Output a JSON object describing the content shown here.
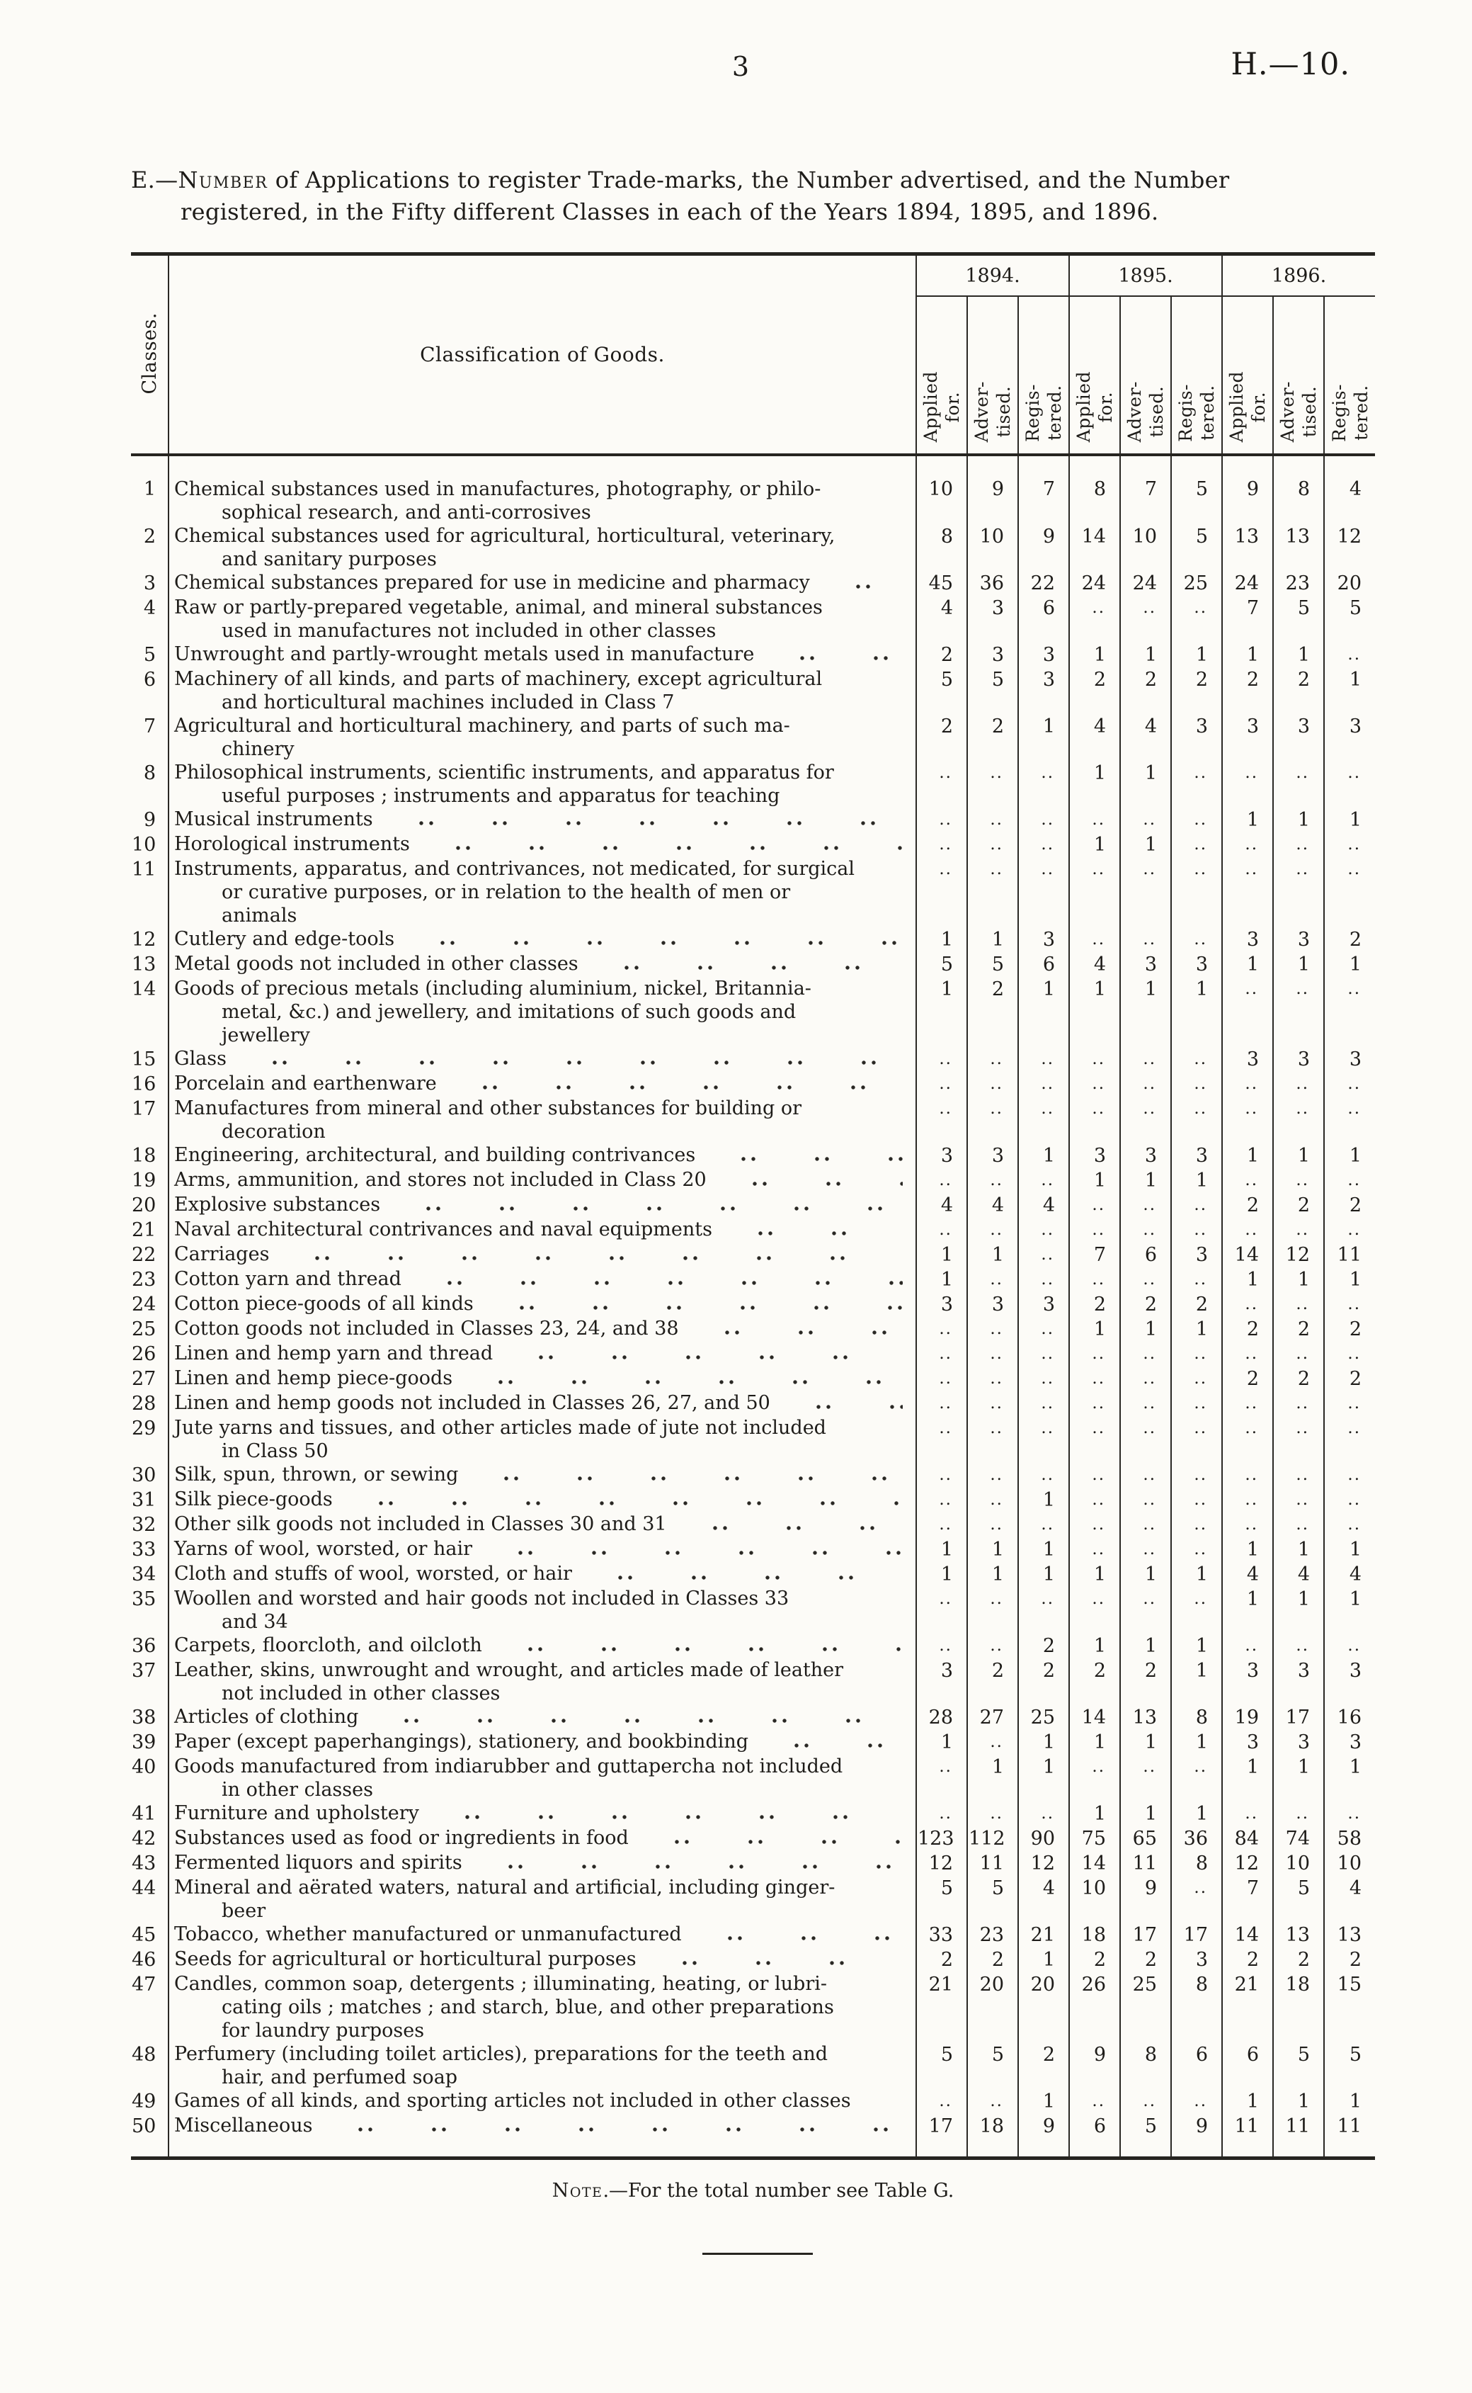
{
  "page": {
    "number": "3",
    "doc_ref": "H.—10.",
    "title_prefix": "E.—",
    "title_sc": "Number",
    "title_rest": " of Applications to register Trade-marks, the Number advertised, and the Number\nregistered, in the Fifty different Classes in each of the Years 1894, 1895, and 1896.",
    "note_sc": "Note",
    "note_rest": ".—For the total number see Table G."
  },
  "table": {
    "col_classes": "Classes.",
    "col_goods": "Classification of Goods.",
    "years": [
      "1894.",
      "1895.",
      "1896."
    ],
    "subcols": [
      "Applied\nfor.",
      "Adver-\ntised.",
      "Regis-\ntered."
    ],
    "empty_marker": "..",
    "rows": [
      {
        "class": 1,
        "goods": "Chemical substances used in manufactures, photography, or philo-\nsophical research, and anti-corrosives",
        "leader": false,
        "values": [
          "10",
          "9",
          "7",
          "8",
          "7",
          "5",
          "9",
          "8",
          "4"
        ]
      },
      {
        "class": 2,
        "goods": "Chemical substances used for agricultural, horticultural, veterinary,\nand sanitary purposes",
        "leader": false,
        "values": [
          "8",
          "10",
          "9",
          "14",
          "10",
          "5",
          "13",
          "13",
          "12"
        ]
      },
      {
        "class": 3,
        "goods": "Chemical substances prepared for use in medicine and pharmacy",
        "leader": true,
        "values": [
          "45",
          "36",
          "22",
          "24",
          "24",
          "25",
          "24",
          "23",
          "20"
        ]
      },
      {
        "class": 4,
        "goods": "Raw or partly-prepared vegetable, animal, and mineral substances\nused in manufactures not included in other classes",
        "leader": false,
        "values": [
          "4",
          "3",
          "6",
          "..",
          "..",
          "..",
          "7",
          "5",
          "5"
        ]
      },
      {
        "class": 5,
        "goods": "Unwrought and partly-wrought metals used in manufacture",
        "leader": true,
        "values": [
          "2",
          "3",
          "3",
          "1",
          "1",
          "1",
          "1",
          "1",
          ".."
        ]
      },
      {
        "class": 6,
        "goods": "Machinery of all kinds, and parts of machinery, except agricultural\nand horticultural machines included in Class 7",
        "leader": false,
        "values": [
          "5",
          "5",
          "3",
          "2",
          "2",
          "2",
          "2",
          "2",
          "1"
        ]
      },
      {
        "class": 7,
        "goods": "Agricultural and horticultural machinery, and parts of such ma-\nchinery",
        "leader": false,
        "values": [
          "2",
          "2",
          "1",
          "4",
          "4",
          "3",
          "3",
          "3",
          "3"
        ]
      },
      {
        "class": 8,
        "goods": "Philosophical instruments, scientific instruments, and apparatus for\nuseful purposes ; instruments and apparatus for teaching",
        "leader": false,
        "values": [
          "..",
          "..",
          "..",
          "1",
          "1",
          "..",
          "..",
          "..",
          ".."
        ]
      },
      {
        "class": 9,
        "goods": "Musical instruments",
        "leader": true,
        "values": [
          "..",
          "..",
          "..",
          "..",
          "..",
          "..",
          "1",
          "1",
          "1"
        ]
      },
      {
        "class": 10,
        "goods": "Horological instruments",
        "leader": true,
        "values": [
          "..",
          "..",
          "..",
          "1",
          "1",
          "..",
          "..",
          "..",
          ".."
        ]
      },
      {
        "class": 11,
        "goods": "Instruments, apparatus, and contrivances, not medicated, for surgical\nor curative purposes, or in relation to the health of men or\nanimals",
        "leader": false,
        "values": [
          "..",
          "..",
          "..",
          "..",
          "..",
          "..",
          "..",
          "..",
          ".."
        ]
      },
      {
        "class": 12,
        "goods": "Cutlery and edge-tools",
        "leader": true,
        "values": [
          "1",
          "1",
          "3",
          "..",
          "..",
          "..",
          "3",
          "3",
          "2"
        ]
      },
      {
        "class": 13,
        "goods": "Metal goods not included in other classes",
        "leader": true,
        "values": [
          "5",
          "5",
          "6",
          "4",
          "3",
          "3",
          "1",
          "1",
          "1"
        ]
      },
      {
        "class": 14,
        "goods": "Goods of precious metals (including aluminium, nickel, Britannia-\nmetal, &c.) and jewellery, and imitations of such goods and\njewellery",
        "leader": false,
        "values": [
          "1",
          "2",
          "1",
          "1",
          "1",
          "1",
          "..",
          "..",
          ".."
        ]
      },
      {
        "class": 15,
        "goods": "Glass",
        "leader": true,
        "values": [
          "..",
          "..",
          "..",
          "..",
          "..",
          "..",
          "3",
          "3",
          "3"
        ]
      },
      {
        "class": 16,
        "goods": "Porcelain and earthenware",
        "leader": true,
        "values": [
          "..",
          "..",
          "..",
          "..",
          "..",
          "..",
          "..",
          "..",
          ".."
        ]
      },
      {
        "class": 17,
        "goods": "Manufactures from mineral and other substances for building or\ndecoration",
        "leader": false,
        "values": [
          "..",
          "..",
          "..",
          "..",
          "..",
          "..",
          "..",
          "..",
          ".."
        ]
      },
      {
        "class": 18,
        "goods": "Engineering, architectural, and building contrivances",
        "leader": true,
        "values": [
          "3",
          "3",
          "1",
          "3",
          "3",
          "3",
          "1",
          "1",
          "1"
        ]
      },
      {
        "class": 19,
        "goods": "Arms, ammunition, and stores not included in Class 20",
        "leader": true,
        "values": [
          "..",
          "..",
          "..",
          "1",
          "1",
          "1",
          "..",
          "..",
          ".."
        ]
      },
      {
        "class": 20,
        "goods": "Explosive substances",
        "leader": true,
        "values": [
          "4",
          "4",
          "4",
          "..",
          "..",
          "..",
          "2",
          "2",
          "2"
        ]
      },
      {
        "class": 21,
        "goods": "Naval architectural contrivances and naval equipments",
        "leader": true,
        "values": [
          "..",
          "..",
          "..",
          "..",
          "..",
          "..",
          "..",
          "..",
          ".."
        ]
      },
      {
        "class": 22,
        "goods": "Carriages",
        "leader": true,
        "values": [
          "1",
          "1",
          "..",
          "7",
          "6",
          "3",
          "14",
          "12",
          "11"
        ]
      },
      {
        "class": 23,
        "goods": "Cotton yarn and thread",
        "leader": true,
        "values": [
          "1",
          "..",
          "..",
          "..",
          "..",
          "..",
          "1",
          "1",
          "1"
        ]
      },
      {
        "class": 24,
        "goods": "Cotton piece-goods of all kinds",
        "leader": true,
        "values": [
          "3",
          "3",
          "3",
          "2",
          "2",
          "2",
          "..",
          "..",
          ".."
        ]
      },
      {
        "class": 25,
        "goods": "Cotton goods not included in Classes 23, 24, and 38",
        "leader": true,
        "values": [
          "..",
          "..",
          "..",
          "1",
          "1",
          "1",
          "2",
          "2",
          "2"
        ]
      },
      {
        "class": 26,
        "goods": "Linen and hemp yarn and thread",
        "leader": true,
        "values": [
          "..",
          "..",
          "..",
          "..",
          "..",
          "..",
          "..",
          "..",
          ".."
        ]
      },
      {
        "class": 27,
        "goods": "Linen and hemp piece-goods",
        "leader": true,
        "values": [
          "..",
          "..",
          "..",
          "..",
          "..",
          "..",
          "2",
          "2",
          "2"
        ]
      },
      {
        "class": 28,
        "goods": "Linen and hemp goods not included in Classes 26, 27, and 50",
        "leader": true,
        "values": [
          "..",
          "..",
          "..",
          "..",
          "..",
          "..",
          "..",
          "..",
          ".."
        ]
      },
      {
        "class": 29,
        "goods": "Jute yarns and tissues, and other articles made of jute not included\nin Class 50",
        "leader": false,
        "values": [
          "..",
          "..",
          "..",
          "..",
          "..",
          "..",
          "..",
          "..",
          ".."
        ]
      },
      {
        "class": 30,
        "goods": "Silk, spun, thrown, or sewing",
        "leader": true,
        "values": [
          "..",
          "..",
          "..",
          "..",
          "..",
          "..",
          "..",
          "..",
          ".."
        ]
      },
      {
        "class": 31,
        "goods": "Silk piece-goods",
        "leader": true,
        "values": [
          "..",
          "..",
          "1",
          "..",
          "..",
          "..",
          "..",
          "..",
          ".."
        ]
      },
      {
        "class": 32,
        "goods": "Other silk goods not included in Classes 30 and 31",
        "leader": true,
        "values": [
          "..",
          "..",
          "..",
          "..",
          "..",
          "..",
          "..",
          "..",
          ".."
        ]
      },
      {
        "class": 33,
        "goods": "Yarns of wool, worsted, or hair",
        "leader": true,
        "values": [
          "1",
          "1",
          "1",
          "..",
          "..",
          "..",
          "1",
          "1",
          "1"
        ]
      },
      {
        "class": 34,
        "goods": "Cloth and stuffs of wool, worsted, or hair",
        "leader": true,
        "values": [
          "1",
          "1",
          "1",
          "1",
          "1",
          "1",
          "4",
          "4",
          "4"
        ]
      },
      {
        "class": 35,
        "goods": "Woollen and worsted and hair goods not included in Classes 33\nand 34",
        "leader": false,
        "values": [
          "..",
          "..",
          "..",
          "..",
          "..",
          "..",
          "1",
          "1",
          "1"
        ]
      },
      {
        "class": 36,
        "goods": "Carpets, floorcloth, and oilcloth",
        "leader": true,
        "values": [
          "..",
          "..",
          "2",
          "1",
          "1",
          "1",
          "..",
          "..",
          ".."
        ]
      },
      {
        "class": 37,
        "goods": "Leather, skins, unwrought and wrought, and articles made of leather\nnot included in other classes",
        "leader": false,
        "values": [
          "3",
          "2",
          "2",
          "2",
          "2",
          "1",
          "3",
          "3",
          "3"
        ]
      },
      {
        "class": 38,
        "goods": "Articles of clothing",
        "leader": true,
        "values": [
          "28",
          "27",
          "25",
          "14",
          "13",
          "8",
          "19",
          "17",
          "16"
        ]
      },
      {
        "class": 39,
        "goods": "Paper (except paperhangings), stationery, and bookbinding",
        "leader": true,
        "values": [
          "1",
          "..",
          "1",
          "1",
          "1",
          "1",
          "3",
          "3",
          "3"
        ]
      },
      {
        "class": 40,
        "goods": "Goods manufactured from indiarubber and guttapercha not included\nin other classes",
        "leader": false,
        "values": [
          "..",
          "1",
          "1",
          "..",
          "..",
          "..",
          "1",
          "1",
          "1"
        ]
      },
      {
        "class": 41,
        "goods": "Furniture and upholstery",
        "leader": true,
        "values": [
          "..",
          "..",
          "..",
          "1",
          "1",
          "1",
          "..",
          "..",
          ".."
        ]
      },
      {
        "class": 42,
        "goods": "Substances used as food or ingredients in food",
        "leader": true,
        "values": [
          "123",
          "112",
          "90",
          "75",
          "65",
          "36",
          "84",
          "74",
          "58"
        ]
      },
      {
        "class": 43,
        "goods": "Fermented liquors and spirits",
        "leader": true,
        "values": [
          "12",
          "11",
          "12",
          "14",
          "11",
          "8",
          "12",
          "10",
          "10"
        ]
      },
      {
        "class": 44,
        "goods": "Mineral and aërated waters, natural and artificial, including ginger-\nbeer",
        "leader": false,
        "values": [
          "5",
          "5",
          "4",
          "10",
          "9",
          "..",
          "7",
          "5",
          "4"
        ]
      },
      {
        "class": 45,
        "goods": "Tobacco, whether manufactured or unmanufactured",
        "leader": true,
        "values": [
          "33",
          "23",
          "21",
          "18",
          "17",
          "17",
          "14",
          "13",
          "13"
        ]
      },
      {
        "class": 46,
        "goods": "Seeds for agricultural or horticultural purposes",
        "leader": true,
        "values": [
          "2",
          "2",
          "1",
          "2",
          "2",
          "3",
          "2",
          "2",
          "2"
        ]
      },
      {
        "class": 47,
        "goods": "Candles, common soap, detergents ; illuminating, heating, or lubri-\ncating oils ; matches ; and starch, blue, and other preparations\nfor laundry purposes",
        "leader": false,
        "values": [
          "21",
          "20",
          "20",
          "26",
          "25",
          "8",
          "21",
          "18",
          "15"
        ]
      },
      {
        "class": 48,
        "goods": "Perfumery (including toilet articles), preparations for the teeth and\nhair, and perfumed soap",
        "leader": false,
        "values": [
          "5",
          "5",
          "2",
          "9",
          "8",
          "6",
          "6",
          "5",
          "5"
        ]
      },
      {
        "class": 49,
        "goods": "Games of all kinds, and sporting articles not included in other classes",
        "leader": false,
        "values": [
          "..",
          "..",
          "1",
          "..",
          "..",
          "..",
          "1",
          "1",
          "1"
        ]
      },
      {
        "class": 50,
        "goods": "Miscellaneous",
        "leader": true,
        "values": [
          "17",
          "18",
          "9",
          "6",
          "5",
          "9",
          "11",
          "11",
          "11"
        ]
      }
    ]
  }
}
